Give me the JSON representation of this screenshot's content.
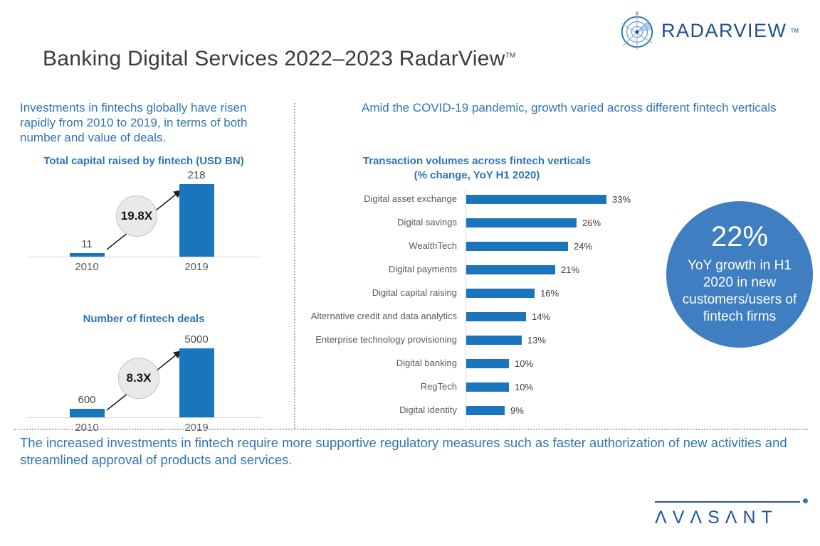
{
  "header": {
    "logo": {
      "text": "RADARVIEW",
      "tm": "TM"
    },
    "title": "Banking Digital Services 2022–2023 RadarView",
    "title_tm": "TM"
  },
  "left_panel": {
    "intro": "Investments in fintechs globally have risen rapidly from 2010 to 2019, in terms of both number and value of deals."
  },
  "right_panel": {
    "intro": "Amid the COVID-19 pandemic, growth varied across different fintech verticals",
    "highlight": {
      "value": "22%",
      "caption": "YoY growth in H1 2020 in new customers/users of fintech firms"
    }
  },
  "footer": {
    "note": "The increased investments in fintech require more supportive regulatory measures such as faster authorization of new activities and streamlined approval of products and services.",
    "brand": "AVASANT",
    "brand_display": "ΛVΛSΛNT"
  },
  "colors": {
    "bar_blue": "#1b75bc",
    "text_blue": "#2e75b6",
    "circle_blue": "#3e7ec1",
    "brand_navy": "#24549c"
  },
  "chart_data": [
    {
      "type": "bar",
      "orientation": "vertical",
      "title": "Total capital raised by fintech (USD BN)",
      "categories": [
        "2010",
        "2019"
      ],
      "values": [
        11,
        218
      ],
      "annotation": "19.8X",
      "ylim": [
        0,
        230
      ],
      "grid": false
    },
    {
      "type": "bar",
      "orientation": "vertical",
      "title": "Number of fintech deals",
      "categories": [
        "2010",
        "2019"
      ],
      "values": [
        600,
        5000
      ],
      "annotation": "8.3X",
      "ylim": [
        0,
        5300
      ],
      "grid": false
    },
    {
      "type": "bar",
      "orientation": "horizontal",
      "title": "Transaction volumes across fintech verticals (% change, YoY H1 2020)",
      "categories": [
        "Digital asset exchange",
        "Digital savings",
        "WealthTech",
        "Digital payments",
        "Digital capital raising",
        "Alternative credit and data analytics",
        "Enterprise technology provisioning",
        "Digital banking",
        "RegTech",
        "Digital identity"
      ],
      "values": [
        33,
        26,
        24,
        21,
        16,
        14,
        13,
        10,
        10,
        9
      ],
      "unit": "%",
      "xlim": [
        0,
        35
      ],
      "grid": false
    }
  ]
}
